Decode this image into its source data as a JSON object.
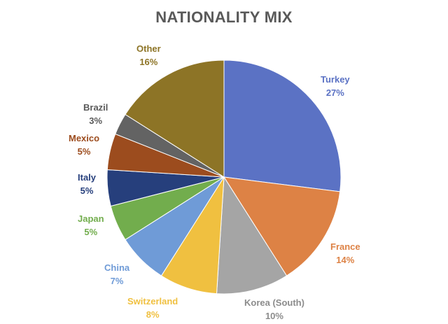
{
  "chart_data": {
    "type": "pie",
    "title": "NATIONALITY MIX",
    "slices": [
      {
        "label": "Turkey",
        "value": 27,
        "display": "27%",
        "color": "#5b72c4"
      },
      {
        "label": "France",
        "value": 14,
        "display": "14%",
        "color": "#dd8245"
      },
      {
        "label": "Korea (South)",
        "value": 10,
        "display": "10%",
        "color": "#a5a5a5"
      },
      {
        "label": "Switzerland",
        "value": 8,
        "display": "8%",
        "color": "#f0c040"
      },
      {
        "label": "China",
        "value": 7,
        "display": "7%",
        "color": "#6f9bd7"
      },
      {
        "label": "Japan",
        "value": 5,
        "display": "5%",
        "color": "#72ad4d"
      },
      {
        "label": "Italy",
        "value": 5,
        "display": "5%",
        "color": "#263f7c"
      },
      {
        "label": "Mexico",
        "value": 5,
        "display": "5%",
        "color": "#9c4c1e"
      },
      {
        "label": "Brazil",
        "value": 3,
        "display": "3%",
        "color": "#636363"
      },
      {
        "label": "Other",
        "value": 16,
        "display": "16%",
        "color": "#8d7426"
      }
    ],
    "legend": "none",
    "data_labels": "outside",
    "label_text_colors": {
      "Korea (South)": "#8c8c8c",
      "Brazil": "#595959"
    }
  }
}
